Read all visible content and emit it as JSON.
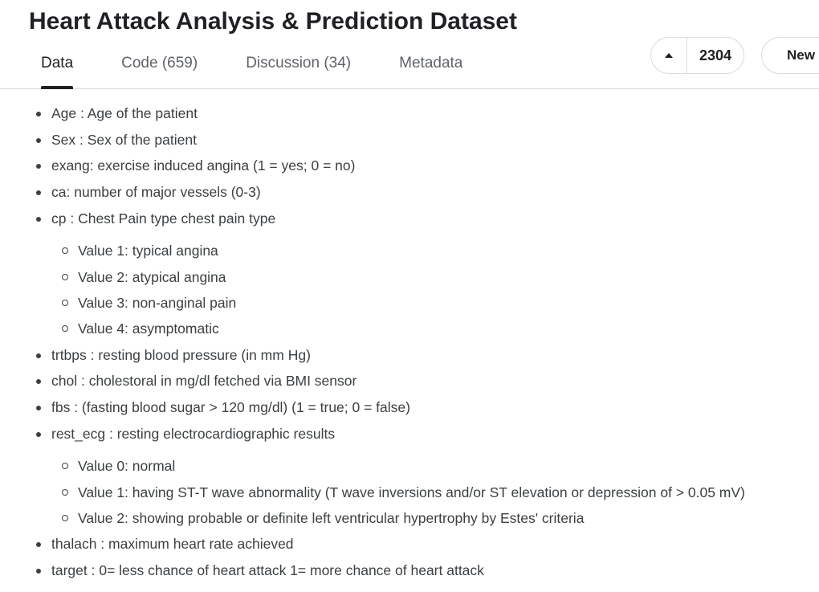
{
  "page": {
    "title": "Heart Attack Analysis & Prediction Dataset"
  },
  "tabs": [
    {
      "label": "Data",
      "active": true
    },
    {
      "label": "Code (659)",
      "active": false
    },
    {
      "label": "Discussion (34)",
      "active": false
    },
    {
      "label": "Metadata",
      "active": false
    }
  ],
  "vote": {
    "count": "2304",
    "icon": "caret-up-icon"
  },
  "new_button": {
    "label": "New"
  },
  "features": [
    {
      "text": "Age : Age of the patient"
    },
    {
      "text": "Sex : Sex of the patient"
    },
    {
      "text": "exang: exercise induced angina (1 = yes; 0 = no)"
    },
    {
      "text": "ca: number of major vessels (0-3)"
    },
    {
      "text": "cp : Chest Pain type chest pain type",
      "values": [
        "Value 1: typical angina",
        "Value 2: atypical angina",
        "Value 3: non-anginal pain",
        "Value 4: asymptomatic"
      ]
    },
    {
      "text": "trtbps : resting blood pressure (in mm Hg)"
    },
    {
      "text": "chol : cholestoral in mg/dl fetched via BMI sensor"
    },
    {
      "text": "fbs : (fasting blood sugar > 120 mg/dl) (1 = true; 0 = false)"
    },
    {
      "text": "rest_ecg : resting electrocardiographic results",
      "values": [
        "Value 0: normal",
        "Value 1: having ST-T wave abnormality (T wave inversions and/or ST elevation or depression of > 0.05 mV)",
        "Value 2: showing probable or definite left ventricular hypertrophy by Estes' criteria"
      ]
    },
    {
      "text": "thalach : maximum heart rate achieved"
    },
    {
      "text": "target : 0= less chance of heart attack 1= more chance of heart attack"
    }
  ]
}
